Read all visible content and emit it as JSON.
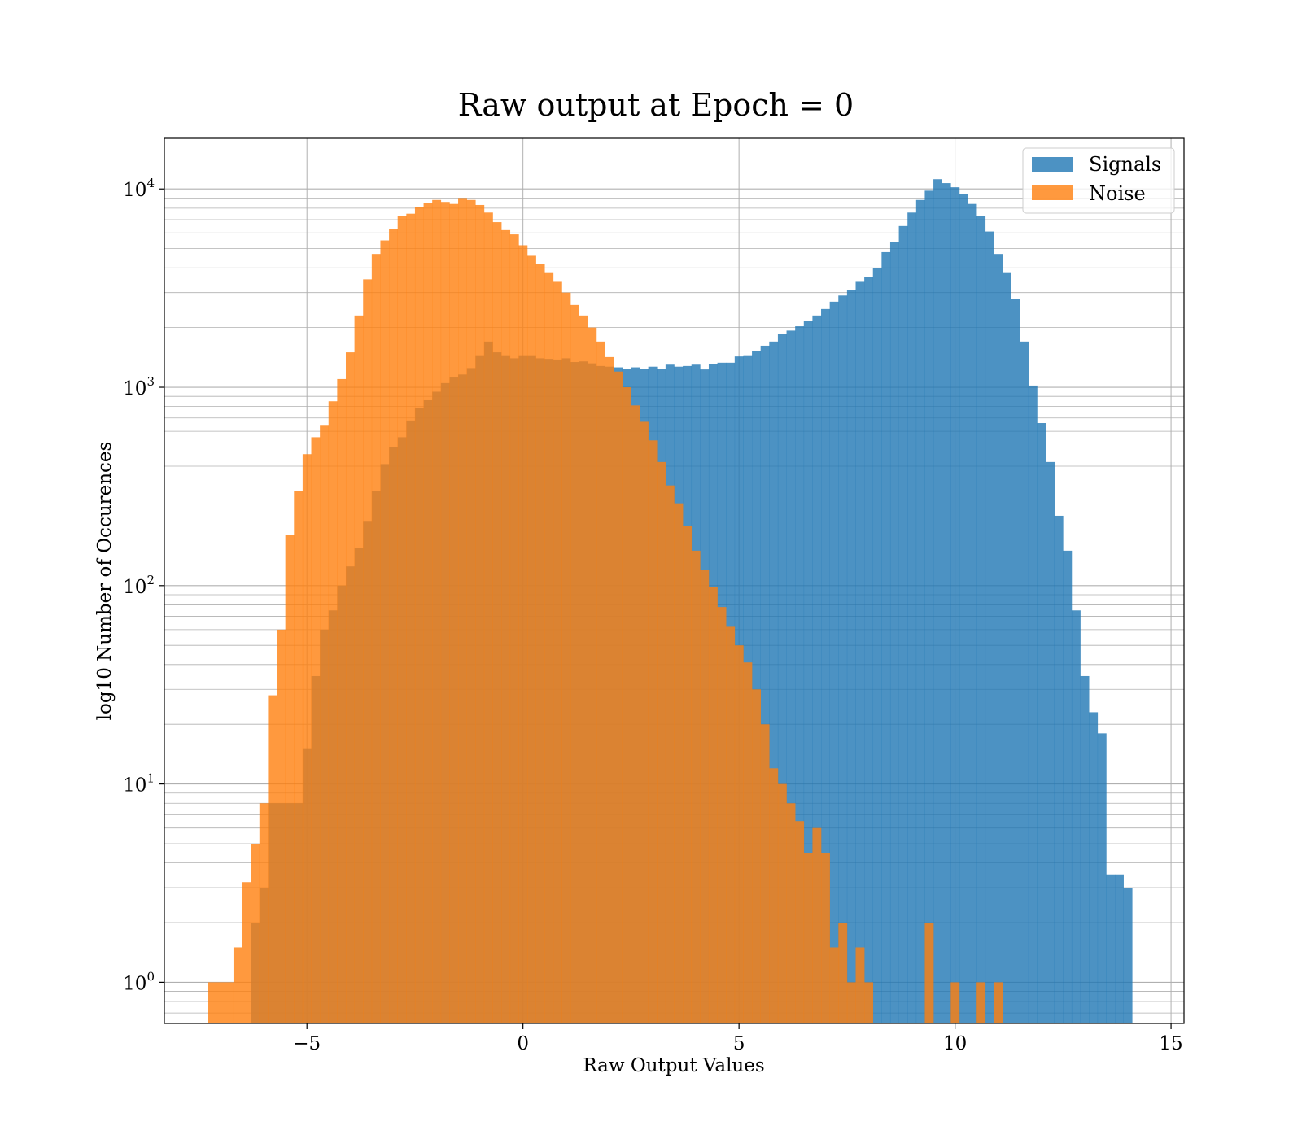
{
  "chart_data": {
    "type": "bar",
    "title": "Raw output at Epoch = 0",
    "xlabel": "Raw Output Values",
    "ylabel": "log10 Number of Occurences",
    "yscale": "log",
    "grid": true,
    "xlim": [
      -8.3,
      15.3
    ],
    "ylim": [
      0.62,
      18000
    ],
    "xticks": [
      -5,
      0,
      5,
      10,
      15
    ],
    "xtick_labels": [
      "−5",
      "0",
      "5",
      "10",
      "15"
    ],
    "yticks": [
      1,
      10,
      100,
      1000,
      10000
    ],
    "ytick_labels": [
      {
        "base": "10",
        "exp": "0"
      },
      {
        "base": "10",
        "exp": "1"
      },
      {
        "base": "10",
        "exp": "2"
      },
      {
        "base": "10",
        "exp": "3"
      },
      {
        "base": "10",
        "exp": "4"
      }
    ],
    "legend_position": "top-right",
    "series": [
      {
        "name": "Signals",
        "color": "#1f77b4",
        "opacity": 0.8,
        "bin_start": -6.3,
        "bin_width": 0.2,
        "values": [
          2,
          3,
          8,
          8,
          8,
          8,
          15,
          35,
          60,
          75,
          100,
          125,
          155,
          210,
          300,
          410,
          500,
          560,
          680,
          790,
          860,
          950,
          1050,
          1120,
          1160,
          1250,
          1450,
          1700,
          1500,
          1450,
          1400,
          1450,
          1450,
          1400,
          1390,
          1380,
          1400,
          1340,
          1350,
          1320,
          1280,
          1270,
          1260,
          1240,
          1260,
          1240,
          1270,
          1240,
          1300,
          1270,
          1280,
          1300,
          1230,
          1310,
          1330,
          1330,
          1430,
          1450,
          1530,
          1620,
          1700,
          1860,
          1930,
          2030,
          2150,
          2300,
          2480,
          2700,
          2900,
          3080,
          3400,
          3600,
          4000,
          4800,
          5400,
          6500,
          7600,
          8800,
          9800,
          11200,
          10700,
          10200,
          9400,
          8400,
          7300,
          6100,
          4700,
          3800,
          2800,
          1700,
          1020,
          660,
          420,
          225,
          150,
          75,
          35,
          23,
          18,
          3.5,
          3.5,
          3
        ]
      },
      {
        "name": "Noise",
        "color": "#ff7f0e",
        "opacity": 0.8,
        "bin_start": -7.3,
        "bin_width": 0.2,
        "values": [
          1,
          1,
          1,
          1.5,
          3.2,
          5,
          8,
          28,
          60,
          180,
          300,
          460,
          560,
          640,
          850,
          1100,
          1500,
          2300,
          3500,
          4700,
          5500,
          6300,
          7300,
          7500,
          8100,
          8500,
          8800,
          8600,
          8400,
          9000,
          8800,
          8300,
          7600,
          6800,
          6200,
          5900,
          5200,
          4600,
          4200,
          3800,
          3400,
          3000,
          2600,
          2300,
          2000,
          1700,
          1420,
          1200,
          1000,
          810,
          670,
          540,
          420,
          320,
          260,
          200,
          150,
          120,
          98,
          78,
          62,
          50,
          41,
          30,
          20,
          12,
          10,
          8,
          6.5,
          4.5,
          6,
          4.5,
          1.5,
          2,
          1,
          1.5,
          1,
          0,
          0,
          0,
          0,
          0,
          0,
          2,
          0,
          0,
          1,
          0,
          0,
          1,
          0,
          1
        ]
      }
    ]
  }
}
